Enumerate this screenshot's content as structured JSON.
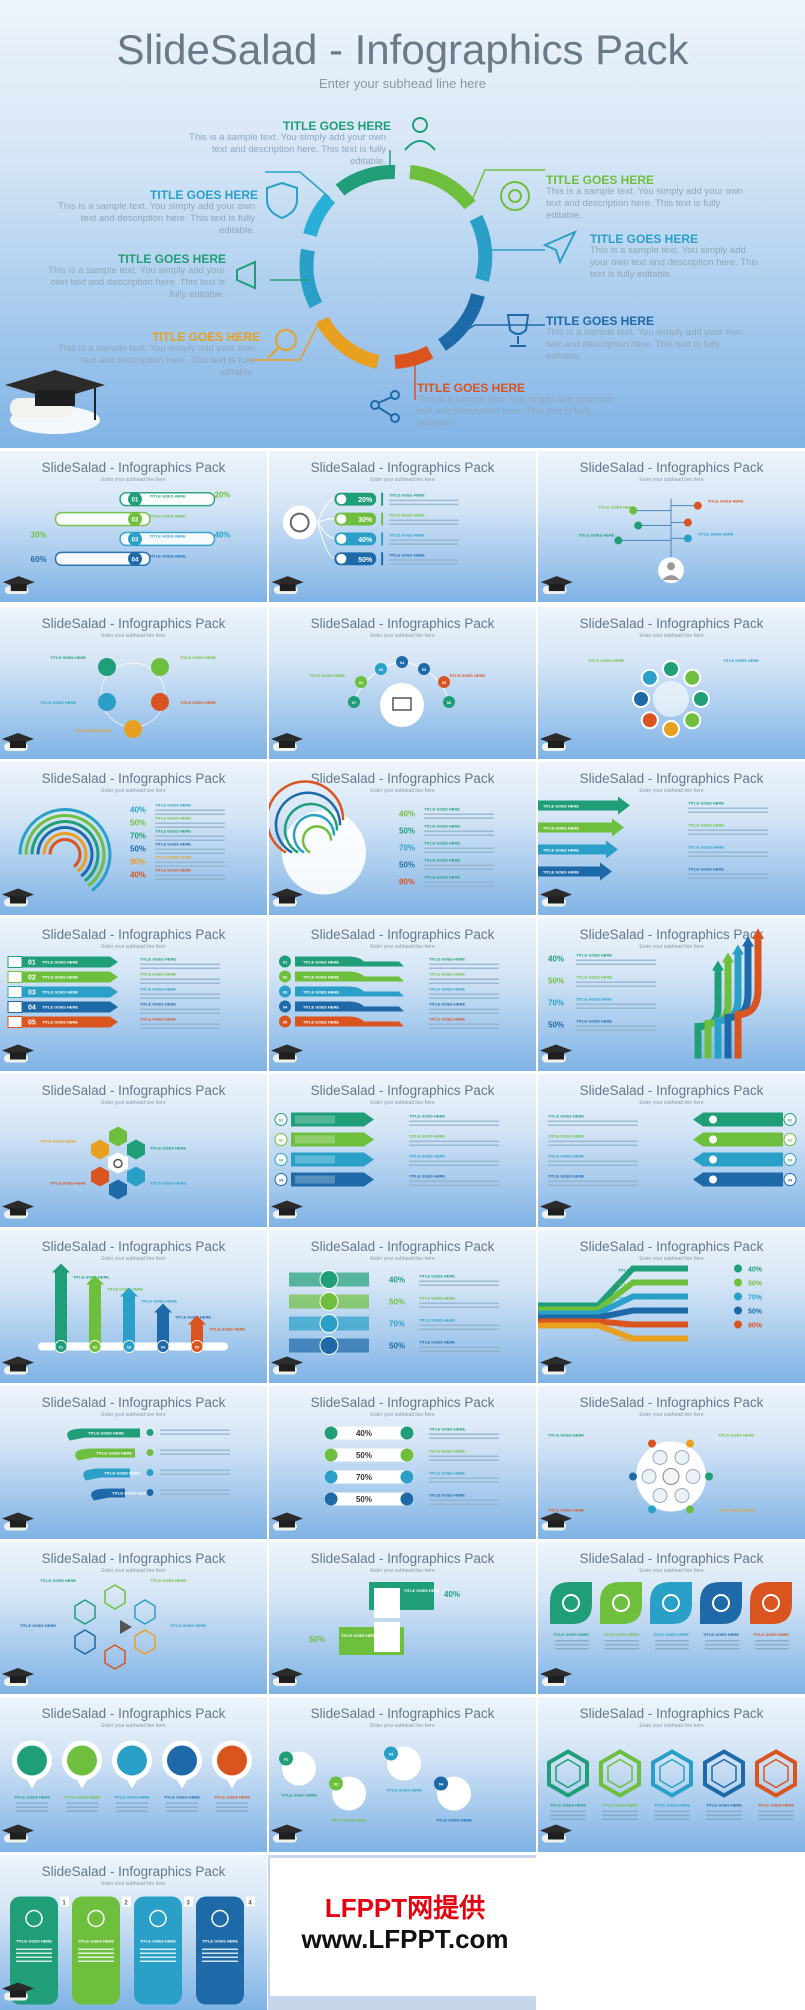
{
  "hero": {
    "title": "SlideSalad - Infographics Pack",
    "subtitle": "Enter your subhead line here",
    "items": [
      {
        "title": "TITLE GOES HERE",
        "desc": "This is a sample text. You simply add your own text and description here. This text is fully editable.",
        "color": "#1f9e78"
      },
      {
        "title": "TITLE GOES HERE",
        "desc": "This is a sample text. You simply add your own text and description here. This text is fully editable.",
        "color": "#2aa0c8"
      },
      {
        "title": "TITLE GOES HERE",
        "desc": "This is a sample text. You simply add your own text and description here. This text is fully editable.",
        "color": "#1f9e78"
      },
      {
        "title": "TITLE GOES HERE",
        "desc": "This is a sample text. You simply add your own text and description here. This text is fully editable.",
        "color": "#e8a020"
      },
      {
        "title": "TITLE GOES HERE",
        "desc": "This is a sample text. You simply add your own text and description here. This text is fully editable.",
        "color": "#6fbf3e"
      },
      {
        "title": "TITLE GOES HERE",
        "desc": "This is a sample text. You simply add your own text and description here. This text is fully editable.",
        "color": "#2aa0c8"
      },
      {
        "title": "TITLE GOES HERE",
        "desc": "This is a sample text. You simply add your own text and description here. This text is fully editable.",
        "color": "#1e6aa8"
      },
      {
        "title": "TITLE GOES HERE",
        "desc": "This is a sample text. You simply add your own text and description here. This text is fully editable.",
        "color": "#d9541e"
      }
    ]
  },
  "thumbs": [
    {
      "title": "SlideSalad - Infographics Pack",
      "subtitle": "Enter your subhead line here",
      "type": "steps-1"
    },
    {
      "title": "SlideSalad - Infographics Pack",
      "subtitle": "Enter your subhead line here",
      "type": "percent-list"
    },
    {
      "title": "SlideSalad - Infographics Pack",
      "subtitle": "Enter your subhead line here",
      "type": "user-tree"
    },
    {
      "title": "SlideSalad - Infographics Pack",
      "subtitle": "Enter your subhead line here",
      "type": "circle-5"
    },
    {
      "title": "SlideSalad - Infographics Pack",
      "subtitle": "Enter your subhead line here",
      "type": "monitor-hub"
    },
    {
      "title": "SlideSalad - Infographics Pack",
      "subtitle": "Enter your subhead line here",
      "type": "octagon"
    },
    {
      "title": "SlideSalad - Infographics Pack",
      "subtitle": "Enter your subhead line here",
      "type": "rings-1"
    },
    {
      "title": "SlideSalad - Infographics Pack",
      "subtitle": "Enter your subhead line here",
      "type": "rings-2"
    },
    {
      "title": "SlideSalad - Infographics Pack",
      "subtitle": "Enter your subhead line here",
      "type": "arrows-right"
    },
    {
      "title": "SlideSalad - Infographics Pack",
      "subtitle": "Enter your subhead line here",
      "type": "banner-list"
    },
    {
      "title": "SlideSalad - Infographics Pack",
      "subtitle": "Enter your subhead line here",
      "type": "ribbon-list"
    },
    {
      "title": "SlideSalad - Infographics Pack",
      "subtitle": "Enter your subhead line here",
      "type": "up-arrows"
    },
    {
      "title": "SlideSalad - Infographics Pack",
      "subtitle": "Enter your subhead line here",
      "type": "hex-cluster"
    },
    {
      "title": "SlideSalad - Infographics Pack",
      "subtitle": "Enter your subhead line here",
      "type": "tag-list"
    },
    {
      "title": "SlideSalad - Infographics Pack",
      "subtitle": "Enter your subhead line here",
      "type": "tag-list-rev"
    },
    {
      "title": "SlideSalad - Infographics Pack",
      "subtitle": "Enter your subhead line here",
      "type": "column-arrows"
    },
    {
      "title": "SlideSalad - Infographics Pack",
      "subtitle": "Enter your subhead line here",
      "type": "stack"
    },
    {
      "title": "SlideSalad - Infographics Pack",
      "subtitle": "Enter your subhead line here",
      "type": "fan"
    },
    {
      "title": "SlideSalad - Infographics Pack",
      "subtitle": "Enter your subhead line here",
      "type": "curl-arrows"
    },
    {
      "title": "SlideSalad - Infographics Pack",
      "subtitle": "Enter your subhead line here",
      "type": "pills"
    },
    {
      "title": "SlideSalad - Infographics Pack",
      "subtitle": "Enter your subhead line here",
      "type": "flower"
    },
    {
      "title": "SlideSalad - Infographics Pack",
      "subtitle": "Enter your subhead line here",
      "type": "hex-net"
    },
    {
      "title": "SlideSalad - Infographics Pack",
      "subtitle": "Enter your subhead line here",
      "type": "cards"
    },
    {
      "title": "SlideSalad - Infographics Pack",
      "subtitle": "Enter your subhead line here",
      "type": "leaf-icons"
    },
    {
      "title": "SlideSalad - Infographics Pack",
      "subtitle": "Enter your subhead line here",
      "type": "pin-icons"
    },
    {
      "title": "SlideSalad - Infographics Pack",
      "subtitle": "Enter your subhead line here",
      "type": "bubbles"
    },
    {
      "title": "SlideSalad - Infographics Pack",
      "subtitle": "Enter your subhead line here",
      "type": "hex-outlines"
    },
    {
      "title": "SlideSalad - Infographics Pack",
      "subtitle": "Enter your subhead line here",
      "type": "tall-cards"
    }
  ],
  "palette": [
    "#1f9e78",
    "#6fbf3e",
    "#2aa0c8",
    "#1e6aa8",
    "#d9541e",
    "#e8a020"
  ],
  "small_labels": {
    "title": "TITLE GOES HERE",
    "numbers": [
      "01",
      "02",
      "03",
      "04",
      "05"
    ],
    "percents_a": [
      "20%",
      "30%",
      "40%",
      "50%"
    ],
    "percents_b": [
      "40%",
      "50%",
      "70%",
      "50%",
      "90%"
    ],
    "percents_c": [
      "40%",
      "50%",
      "70%",
      "50%"
    ],
    "percents_d": [
      "30%",
      "20%",
      "40%",
      "60%"
    ]
  },
  "brand": {
    "line1": "LFPPT网提供",
    "line2": "www.LFPPT.com"
  }
}
